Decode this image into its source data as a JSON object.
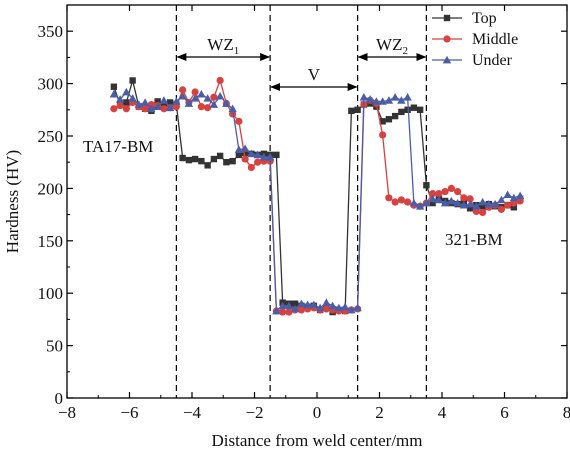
{
  "chart_data": {
    "type": "line",
    "xlabel": "Distance from weld center/mm",
    "ylabel": "Hardness (HV)",
    "xlim": [
      -8,
      8
    ],
    "ylim": [
      0,
      375
    ],
    "xticks": [
      -8,
      -6,
      -4,
      -2,
      0,
      2,
      4,
      6,
      8
    ],
    "yticks": [
      0,
      50,
      100,
      150,
      200,
      250,
      300,
      350
    ],
    "grid": false,
    "legend_position": "top-right",
    "regions": [
      {
        "label": "WZ",
        "subscript": "1",
        "from": -4.5,
        "to": -1.5
      },
      {
        "label": "V",
        "subscript": "",
        "from": -1.5,
        "to": 1.3
      },
      {
        "label": "WZ",
        "subscript": "2",
        "from": 1.3,
        "to": 3.5
      }
    ],
    "region_boundaries": [
      -4.5,
      -1.5,
      1.3,
      3.5
    ],
    "annotations": [
      "TA17-BM",
      "321-BM"
    ],
    "series": [
      {
        "name": "Top",
        "color": "#333333",
        "marker": "square",
        "x": [
          -6.5,
          -6.3,
          -6.1,
          -5.9,
          -5.7,
          -5.5,
          -5.3,
          -5.1,
          -4.9,
          -4.7,
          -4.5,
          -4.3,
          -4.1,
          -3.9,
          -3.7,
          -3.5,
          -3.3,
          -3.1,
          -2.9,
          -2.7,
          -2.5,
          -2.3,
          -2.1,
          -1.9,
          -1.7,
          -1.5,
          -1.3,
          -1.1,
          -0.9,
          -0.7,
          -0.5,
          -0.3,
          -0.1,
          0.1,
          0.3,
          0.5,
          0.7,
          0.9,
          1.1,
          1.3,
          1.5,
          1.7,
          1.9,
          2.1,
          2.3,
          2.5,
          2.7,
          2.9,
          3.1,
          3.3,
          3.5,
          3.7,
          3.9,
          4.1,
          4.3,
          4.5,
          4.7,
          4.9,
          5.1,
          5.3,
          5.5,
          5.7,
          5.9,
          6.1,
          6.3,
          6.5
        ],
        "y": [
          297,
          280,
          282,
          303,
          278,
          276,
          274,
          283,
          280,
          282,
          280,
          229,
          227,
          228,
          226,
          222,
          228,
          231,
          225,
          226,
          232,
          234,
          233,
          232,
          233,
          232,
          232,
          91,
          90,
          90,
          88,
          87,
          88,
          84,
          86,
          82,
          84,
          83,
          274,
          275,
          280,
          281,
          278,
          264,
          266,
          269,
          273,
          275,
          277,
          275,
          203,
          186,
          190,
          188,
          186,
          185,
          186,
          181,
          184,
          183,
          185,
          183,
          182,
          184,
          182,
          190
        ]
      },
      {
        "name": "Middle",
        "color": "#d94040",
        "marker": "circle",
        "x": [
          -6.5,
          -6.3,
          -6.1,
          -5.9,
          -5.7,
          -5.5,
          -5.3,
          -5.1,
          -4.9,
          -4.7,
          -4.5,
          -4.3,
          -4.1,
          -3.9,
          -3.7,
          -3.5,
          -3.3,
          -3.1,
          -2.9,
          -2.7,
          -2.5,
          -2.3,
          -2.1,
          -1.9,
          -1.7,
          -1.5,
          -1.3,
          -1.1,
          -0.9,
          -0.7,
          -0.5,
          -0.3,
          -0.1,
          0.1,
          0.3,
          0.5,
          0.7,
          0.9,
          1.1,
          1.3,
          1.5,
          1.7,
          1.9,
          2.1,
          2.3,
          2.5,
          2.7,
          2.9,
          3.1,
          3.3,
          3.5,
          3.7,
          3.9,
          4.1,
          4.3,
          4.5,
          4.7,
          4.9,
          5.1,
          5.3,
          5.5,
          5.7,
          5.9,
          6.1,
          6.3,
          6.5
        ],
        "y": [
          276,
          279,
          276,
          282,
          278,
          276,
          280,
          279,
          276,
          277,
          278,
          294,
          282,
          292,
          278,
          277,
          287,
          303,
          281,
          271,
          264,
          228,
          220,
          225,
          226,
          226,
          83,
          82,
          82,
          84,
          84,
          85,
          86,
          84,
          85,
          84,
          83,
          83,
          84,
          85,
          280,
          284,
          281,
          251,
          191,
          187,
          189,
          187,
          184,
          183,
          186,
          195,
          195,
          197,
          200,
          197,
          191,
          190,
          178,
          177,
          182,
          184,
          180,
          184,
          186,
          188
        ]
      },
      {
        "name": "Under",
        "color": "#4a5ea8",
        "marker": "triangle",
        "x": [
          -6.5,
          -6.3,
          -6.1,
          -5.9,
          -5.7,
          -5.5,
          -5.3,
          -5.1,
          -4.9,
          -4.7,
          -4.5,
          -4.3,
          -4.1,
          -3.9,
          -3.7,
          -3.5,
          -3.3,
          -3.1,
          -2.9,
          -2.7,
          -2.5,
          -2.3,
          -2.1,
          -1.9,
          -1.7,
          -1.5,
          -1.3,
          -1.1,
          -0.9,
          -0.7,
          -0.5,
          -0.3,
          -0.1,
          0.1,
          0.3,
          0.5,
          0.7,
          0.9,
          1.1,
          1.3,
          1.5,
          1.7,
          1.9,
          2.1,
          2.3,
          2.5,
          2.7,
          2.9,
          3.1,
          3.3,
          3.5,
          3.7,
          3.9,
          4.1,
          4.3,
          4.5,
          4.7,
          4.9,
          5.1,
          5.3,
          5.5,
          5.7,
          5.9,
          6.1,
          6.3,
          6.5
        ],
        "y": [
          290,
          285,
          292,
          286,
          280,
          282,
          276,
          278,
          284,
          277,
          283,
          288,
          281,
          286,
          290,
          286,
          280,
          288,
          281,
          276,
          237,
          238,
          233,
          232,
          230,
          230,
          83,
          88,
          88,
          85,
          90,
          89,
          89,
          86,
          91,
          88,
          86,
          87,
          84,
          86,
          287,
          285,
          283,
          283,
          284,
          287,
          284,
          287,
          186,
          183,
          186,
          190,
          189,
          186,
          188,
          186,
          184,
          185,
          183,
          187,
          185,
          185,
          189,
          194,
          191,
          193
        ]
      }
    ]
  }
}
